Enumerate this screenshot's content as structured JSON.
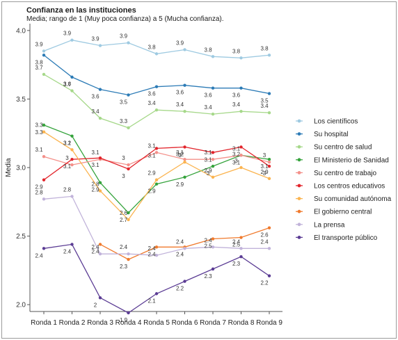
{
  "chart_data": {
    "type": "line",
    "title": "Confianza en las instituciones",
    "subtitle": "Media; rango de 1 (Muy poca confianza) a 5 (Mucha confianza).",
    "xlabel": "",
    "ylabel": "Media",
    "ylim": [
      1.95,
      4.05
    ],
    "yticks": [
      2.0,
      2.5,
      3.0,
      3.5,
      4.0
    ],
    "grid": false,
    "legend_position": "right",
    "categories": [
      "Ronda 1",
      "Ronda 2",
      "Ronda 3",
      "Ronda 4",
      "Ronda 5",
      "Ronda 6",
      "Ronda 7",
      "Ronda 8",
      "Ronda 9"
    ],
    "series": [
      {
        "name": "Los científicos",
        "color": "#9ecae1",
        "values": [
          3.85,
          3.93,
          3.89,
          3.91,
          3.83,
          3.86,
          3.81,
          3.8,
          3.82
        ],
        "labels": [
          "3.9",
          "3.9",
          "3.9",
          "3.9",
          "3.8",
          "3.9",
          "3.8",
          "3.8",
          "3.8"
        ]
      },
      {
        "name": "Su hospital",
        "color": "#2c7bb6",
        "values": [
          3.82,
          3.66,
          3.57,
          3.53,
          3.59,
          3.6,
          3.58,
          3.58,
          3.54
        ],
        "labels": [
          "3.8",
          "3.7",
          "3.6",
          "3.5",
          "3.6",
          "3.6",
          "3.6",
          "3.6",
          "3.5"
        ]
      },
      {
        "name": "Su centro de salud",
        "color": "#a6d88a",
        "values": [
          3.68,
          3.56,
          3.36,
          3.29,
          3.42,
          3.41,
          3.39,
          3.41,
          3.4
        ],
        "labels": [
          "3.7",
          "3.6",
          "3.4",
          "3.3",
          "3.4",
          "3.4",
          "3.4",
          "3.4",
          "3.4"
        ]
      },
      {
        "name": "El Ministerio de Sanidad",
        "color": "#35a33c",
        "values": [
          3.31,
          3.23,
          2.89,
          2.67,
          2.88,
          2.93,
          3.01,
          3.09,
          3.06
        ],
        "labels": [
          "3.3",
          "3.2",
          "2.9",
          "2.7",
          "2.9",
          "2.9",
          "3",
          "3.1",
          "3.1"
        ]
      },
      {
        "name": "Su centro de trabajo",
        "color": "#f4908a",
        "values": [
          3.08,
          3.02,
          3.06,
          3.02,
          3.11,
          3.06,
          3.06,
          3.09,
          3.04
        ],
        "labels": [
          "3.1",
          "3",
          "3.1",
          "3",
          "3.1",
          "3.1",
          "3.1",
          "3.1",
          "3"
        ]
      },
      {
        "name": "Los centros educativos",
        "color": "#e2242b",
        "values": [
          2.91,
          3.06,
          3.07,
          2.99,
          3.14,
          3.15,
          3.11,
          3.15,
          3.01
        ],
        "labels": [
          "2.9",
          "3.1",
          "3.1",
          "3",
          "3.1",
          "3.2",
          "3.1",
          "3.2",
          "3"
        ]
      },
      {
        "name": "Su comunidad autónoma",
        "color": "#fbb450",
        "values": [
          3.26,
          3.13,
          2.83,
          2.62,
          2.91,
          3.04,
          2.93,
          3.0,
          2.92
        ],
        "labels": [
          "3.3",
          "3.1",
          "2.8",
          "2.6",
          "2.9",
          "3",
          "2.9",
          "3",
          "2.9"
        ]
      },
      {
        "name": "El gobierno central",
        "color": "#f07a2d",
        "values": [
          null,
          null,
          2.44,
          2.33,
          2.42,
          2.42,
          2.48,
          2.49,
          2.56
        ],
        "labels": [
          null,
          null,
          "2.4",
          "2.3",
          "2.4",
          "2.4",
          "2.5",
          "2.5",
          "2.6"
        ]
      },
      {
        "name": "La prensa",
        "color": "#c1b3da",
        "values": [
          2.77,
          2.79,
          2.37,
          2.37,
          2.36,
          2.41,
          2.42,
          2.41,
          2.41
        ],
        "labels": [
          "2.8",
          "2.8",
          "2.4",
          "2.4",
          "2.4",
          "2.4",
          "2.4",
          "2.4",
          "2.4"
        ]
      },
      {
        "name": "El transporte público",
        "color": "#5b3c94",
        "values": [
          2.41,
          2.44,
          2.05,
          1.94,
          2.08,
          2.17,
          2.26,
          2.35,
          2.21
        ],
        "labels": [
          "2.4",
          "2.4",
          "2",
          "1.9",
          "2.1",
          "2.2",
          "2.3",
          "2.3",
          "2.2"
        ]
      }
    ]
  }
}
